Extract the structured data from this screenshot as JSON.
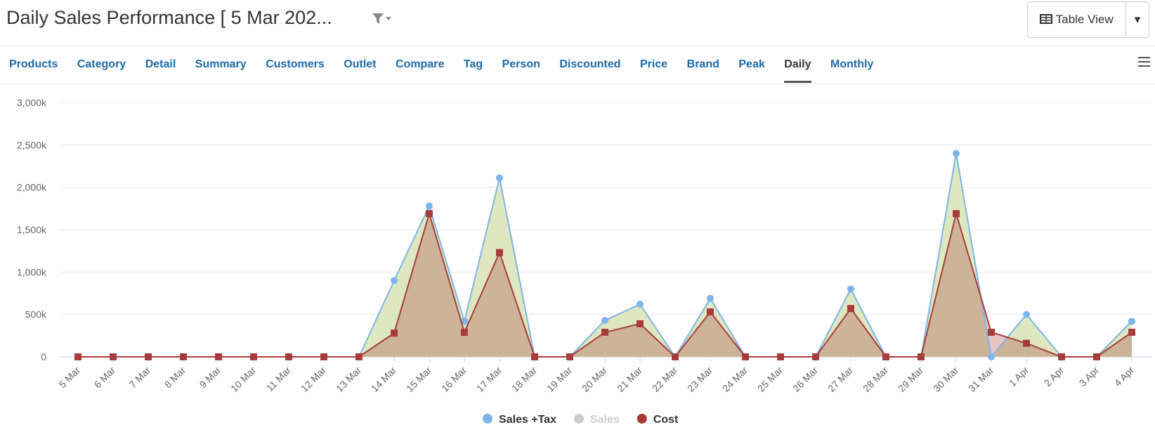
{
  "header": {
    "title": "Daily Sales Performance [ 5 Mar 202...",
    "button": "Table View"
  },
  "tabs": {
    "items": [
      "Products",
      "Category",
      "Detail",
      "Summary",
      "Customers",
      "Outlet",
      "Compare",
      "Tag",
      "Person",
      "Discounted",
      "Price",
      "Brand",
      "Peak",
      "Daily",
      "Monthly"
    ],
    "active": 13
  },
  "chart_data": {
    "type": "area",
    "legend": "bottom",
    "grid": true,
    "categories": [
      "5 Mar",
      "6 Mar",
      "7 Mar",
      "8 Mar",
      "9 Mar",
      "10 Mar",
      "11 Mar",
      "12 Mar",
      "13 Mar",
      "14 Mar",
      "15 Mar",
      "16 Mar",
      "17 Mar",
      "18 Mar",
      "19 Mar",
      "20 Mar",
      "21 Mar",
      "22 Mar",
      "23 Mar",
      "24 Mar",
      "25 Mar",
      "26 Mar",
      "27 Mar",
      "28 Mar",
      "29 Mar",
      "30 Mar",
      "31 Mar",
      "1 Apr",
      "2 Apr",
      "3 Apr",
      "4 Apr"
    ],
    "ylim": [
      0,
      3000
    ],
    "yticks": [
      0,
      {
        "value": 500,
        "label": "500k"
      },
      {
        "value": 1000,
        "label": "1,000k"
      },
      {
        "value": 1500,
        "label": "1,500k"
      },
      {
        "value": 2000,
        "label": "2,000k"
      },
      {
        "value": 2500,
        "label": "2,500k"
      },
      {
        "value": 3000,
        "label": "3,000k"
      }
    ],
    "series": [
      {
        "name": "Sales +Tax",
        "color": "#7cb5ec",
        "fill": "#dde8c0",
        "marker": "circle",
        "values": [
          0,
          0,
          0,
          0,
          0,
          0,
          0,
          0,
          0,
          900,
          1780,
          420,
          2110,
          0,
          0,
          430,
          620,
          0,
          690,
          0,
          0,
          0,
          800,
          0,
          0,
          2400,
          0,
          500,
          0,
          0,
          420
        ]
      },
      {
        "name": "Cost",
        "color": "#a83c3c",
        "fill": "rgba(168,60,60,0.3)",
        "marker": "square",
        "values": [
          0,
          0,
          0,
          0,
          0,
          0,
          0,
          0,
          0,
          280,
          1690,
          290,
          1230,
          0,
          0,
          290,
          390,
          0,
          530,
          0,
          0,
          0,
          570,
          0,
          0,
          1690,
          290,
          160,
          0,
          0,
          290
        ]
      }
    ],
    "hidden_series": [
      {
        "name": "Sales",
        "color": "#cccccc"
      }
    ]
  }
}
